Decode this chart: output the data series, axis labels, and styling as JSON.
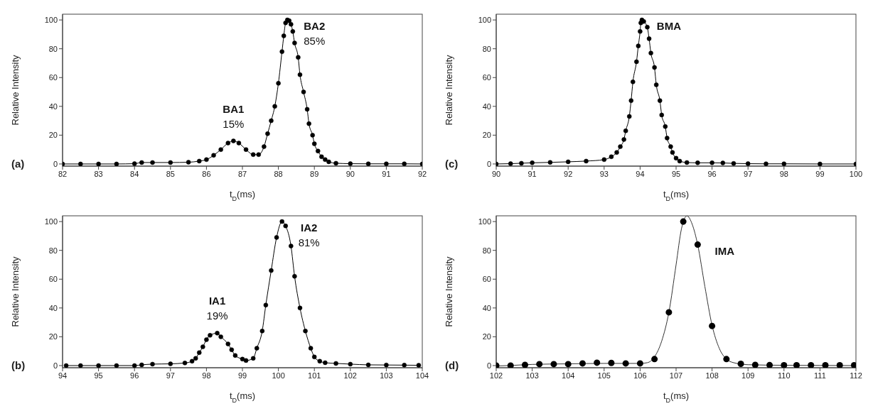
{
  "chart_data": [
    {
      "type": "line",
      "xlabel": "t$_{D}$(ms)",
      "ylabel": "Relative Intensity",
      "xlim": [
        82,
        92
      ],
      "ylim": [
        -1.5,
        104
      ],
      "xticks": [
        82,
        83,
        84,
        85,
        86,
        87,
        88,
        89,
        90,
        91,
        92
      ],
      "yticks": [
        0,
        20,
        40,
        60,
        80,
        100
      ],
      "grid": false,
      "marker": "circle",
      "line_style": "solid",
      "annotations": [
        "(a)",
        {
          "text": "BA1\n15%",
          "x": 86.75,
          "y": 16
        },
        {
          "text": "BA2\n85%",
          "x": 88.25,
          "y": 100
        }
      ],
      "series": [
        {
          "color": "#000000",
          "x": [
            82,
            82.5,
            83,
            83.5,
            84,
            84.2,
            84.5,
            85,
            85.5,
            85.8,
            86,
            86.2,
            86.4,
            86.6,
            86.75,
            86.9,
            87.1,
            87.3,
            87.45,
            87.6,
            87.7,
            87.8,
            87.9,
            88,
            88.1,
            88.15,
            88.2,
            88.25,
            88.3,
            88.35,
            88.4,
            88.45,
            88.55,
            88.6,
            88.7,
            88.8,
            88.85,
            88.95,
            89,
            89.1,
            89.2,
            89.3,
            89.4,
            89.6,
            90,
            90.5,
            91,
            91.5,
            92
          ],
          "values": [
            0,
            0,
            0,
            0,
            0.2,
            1,
            1,
            1,
            1.2,
            2,
            3,
            6,
            10,
            14.5,
            16,
            14.5,
            10,
            6.5,
            6.5,
            12,
            21,
            30,
            40,
            56,
            78,
            89,
            98,
            100,
            99.5,
            97,
            92,
            84,
            74,
            62,
            50,
            38,
            28,
            20,
            14,
            9,
            5,
            3,
            1.5,
            0.5,
            0.2,
            0.1,
            0.1,
            0.1,
            0
          ]
        }
      ]
    },
    {
      "type": "line",
      "xlabel": "t$_{D}$(ms)",
      "ylabel": "Relative Intensity",
      "xlim": [
        90,
        100
      ],
      "ylim": [
        -1.5,
        104
      ],
      "xticks": [
        90,
        91,
        92,
        93,
        94,
        95,
        96,
        97,
        98,
        99,
        100
      ],
      "yticks": [
        0,
        20,
        40,
        60,
        80,
        100
      ],
      "grid": false,
      "marker": "circle",
      "line_style": "solid",
      "annotations": [
        "(c)",
        {
          "text": "BMA",
          "x": 94.05,
          "y": 100
        }
      ],
      "series": [
        {
          "color": "#000000",
          "x": [
            90,
            90.4,
            90.7,
            91,
            91.5,
            92,
            92.5,
            93,
            93.2,
            93.35,
            93.45,
            93.55,
            93.6,
            93.7,
            93.75,
            93.8,
            93.9,
            93.95,
            94,
            94.02,
            94.05,
            94.1,
            94.2,
            94.25,
            94.3,
            94.4,
            94.45,
            94.55,
            94.6,
            94.7,
            94.75,
            94.85,
            94.9,
            95,
            95.1,
            95.3,
            95.6,
            96,
            96.3,
            96.6,
            97,
            97.5,
            98,
            99,
            100
          ],
          "values": [
            0,
            0.2,
            0.5,
            0.8,
            1.1,
            1.5,
            2,
            3,
            5,
            8,
            12,
            17,
            23,
            33,
            44,
            57,
            71,
            82,
            92,
            98,
            100,
            99,
            95,
            87,
            77,
            67,
            55,
            44,
            34,
            26,
            18,
            12,
            8,
            4,
            2,
            1,
            0.8,
            0.8,
            0.7,
            0.4,
            0.2,
            0.1,
            0.1,
            0,
            0
          ]
        }
      ]
    },
    {
      "type": "line",
      "xlabel": "t$_{D}$(ms)",
      "ylabel": "Relative Intensity",
      "xlim": [
        94,
        104
      ],
      "ylim": [
        -1.5,
        104
      ],
      "xticks": [
        94,
        95,
        96,
        97,
        98,
        99,
        100,
        101,
        102,
        103,
        104
      ],
      "yticks": [
        0,
        20,
        40,
        60,
        80,
        100
      ],
      "grid": false,
      "marker": "circle",
      "line_style": "solid",
      "annotations": [
        "(b)",
        {
          "text": "IA1\n19%",
          "x": 98.3,
          "y": 22.5
        },
        {
          "text": "IA2\n81%",
          "x": 100.1,
          "y": 100
        }
      ],
      "series": [
        {
          "color": "#000000",
          "x": [
            94.1,
            94.5,
            95,
            95.5,
            96,
            96.2,
            96.5,
            97,
            97.4,
            97.6,
            97.7,
            97.8,
            97.9,
            98,
            98.1,
            98.3,
            98.4,
            98.6,
            98.7,
            98.8,
            99,
            99.1,
            99.3,
            99.4,
            99.55,
            99.65,
            99.8,
            99.95,
            100.1,
            100.2,
            100.35,
            100.45,
            100.6,
            100.75,
            100.9,
            101,
            101.15,
            101.3,
            101.6,
            102,
            102.5,
            103,
            103.5,
            103.9
          ],
          "values": [
            0,
            0,
            0,
            0,
            0,
            0.5,
            1,
            1.2,
            1.8,
            3,
            5,
            9,
            13,
            18,
            21,
            22.5,
            20,
            15,
            11,
            7,
            4.5,
            3.5,
            5,
            12,
            24,
            42,
            66,
            89,
            100,
            97,
            83,
            62,
            40,
            24,
            12,
            6,
            3,
            2,
            1.5,
            1,
            0.5,
            0.4,
            0.3,
            0.2
          ]
        }
      ]
    },
    {
      "type": "line",
      "xlabel": "t$_{D}$(ms)",
      "ylabel": "Relative Intensity",
      "xlim": [
        102,
        112
      ],
      "ylim": [
        -1.5,
        104
      ],
      "xticks": [
        102,
        103,
        104,
        105,
        106,
        107,
        108,
        109,
        110,
        111,
        112
      ],
      "yticks": [
        0,
        20,
        40,
        60,
        80,
        100
      ],
      "grid": false,
      "line_style": "solid",
      "annotations": [
        "(d)",
        {
          "text": "IMA",
          "x": 107.6,
          "y": 84
        }
      ],
      "series": [
        {
          "type": "scatter",
          "marker": "circle",
          "color": "#000000",
          "x": [
            102,
            102.4,
            102.8,
            103.2,
            103.6,
            104,
            104.4,
            104.8,
            105.2,
            105.6,
            106,
            106.4,
            106.8,
            107.2,
            107.6,
            108,
            108.4,
            108.8,
            109.2,
            109.6,
            110,
            110.35,
            110.75,
            111.15,
            111.55,
            111.95
          ],
          "values": [
            0,
            0,
            0.5,
            1,
            1,
            1,
            1.5,
            2,
            1.8,
            1.5,
            1.5,
            4.5,
            37,
            100,
            84,
            27.5,
            4.5,
            1.2,
            0.5,
            0.3,
            0.2,
            0.2,
            0.2,
            0.2,
            0.2,
            0.2
          ]
        },
        {
          "type": "line",
          "marker": "none",
          "color": "#333333",
          "x": [
            102,
            102.5,
            103,
            104,
            105,
            106,
            106.2,
            106.4,
            106.6,
            106.8,
            107,
            107.15,
            107.3,
            107.45,
            107.6,
            107.8,
            108,
            108.2,
            108.4,
            108.6,
            109,
            110,
            111,
            112
          ],
          "values": [
            -0.3,
            0.2,
            0.8,
            1.2,
            1.5,
            1.5,
            2,
            6,
            17,
            37,
            70,
            95,
            104,
            98,
            84,
            55,
            28,
            12,
            4.5,
            2,
            0.6,
            0.2,
            0.1,
            0
          ]
        }
      ]
    }
  ]
}
